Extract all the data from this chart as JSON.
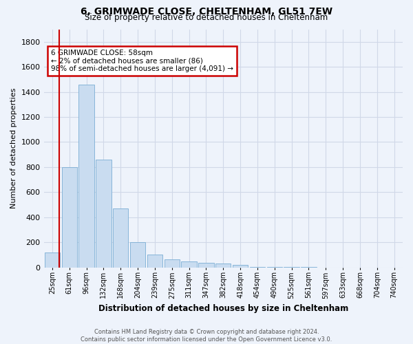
{
  "title": "6, GRIMWADE CLOSE, CHELTENHAM, GL51 7EW",
  "subtitle": "Size of property relative to detached houses in Cheltenham",
  "xlabel": "Distribution of detached houses by size in Cheltenham",
  "ylabel": "Number of detached properties",
  "bar_categories": [
    "25sqm",
    "61sqm",
    "96sqm",
    "132sqm",
    "168sqm",
    "204sqm",
    "239sqm",
    "275sqm",
    "311sqm",
    "347sqm",
    "382sqm",
    "418sqm",
    "454sqm",
    "490sqm",
    "525sqm",
    "561sqm",
    "597sqm",
    "633sqm",
    "668sqm",
    "704sqm",
    "740sqm"
  ],
  "bar_values": [
    120,
    800,
    1460,
    860,
    470,
    200,
    100,
    65,
    45,
    38,
    30,
    22,
    5,
    5,
    5,
    5,
    0,
    0,
    0,
    0,
    0
  ],
  "bar_color": "#c9dcf0",
  "bar_edge_color": "#7aadd4",
  "grid_color": "#d0d8e8",
  "background_color": "#eef3fb",
  "property_label": "6 GRIMWADE CLOSE: 58sqm",
  "annotation_line1": "← 2% of detached houses are smaller (86)",
  "annotation_line2": "98% of semi-detached houses are larger (4,091) →",
  "red_line_x": 0.42,
  "ylim": [
    0,
    1900
  ],
  "yticks": [
    0,
    200,
    400,
    600,
    800,
    1000,
    1200,
    1400,
    1600,
    1800
  ],
  "annotation_box_color": "#cc0000",
  "footer_line1": "Contains HM Land Registry data © Crown copyright and database right 2024.",
  "footer_line2": "Contains public sector information licensed under the Open Government Licence v3.0."
}
